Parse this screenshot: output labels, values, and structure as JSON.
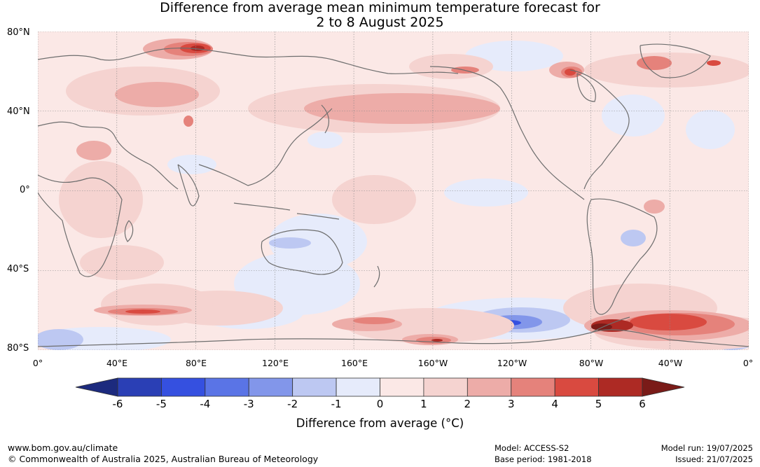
{
  "title": {
    "line1": "Difference from average mean minimum temperature forecast for",
    "line2": "2 to 8 August 2025"
  },
  "axes": {
    "lat_labels": [
      "80°N",
      "40°N",
      "0°",
      "40°S",
      "80°S"
    ],
    "lon_labels": [
      "0°",
      "40°E",
      "80°E",
      "120°E",
      "160°E",
      "160°W",
      "120°W",
      "80°W",
      "40°W",
      "0°"
    ]
  },
  "colorbar": {
    "ticks": [
      "-6",
      "-5",
      "-4",
      "-3",
      "-2",
      "-1",
      "0",
      "1",
      "2",
      "3",
      "4",
      "5",
      "6"
    ],
    "colors": [
      "#1c2a7e",
      "#2a3fb5",
      "#3550e0",
      "#5a74e6",
      "#8296ea",
      "#bdc8f2",
      "#e6ebfb",
      "#fbe8e6",
      "#f5d3d0",
      "#edaca8",
      "#e5827b",
      "#d94a40",
      "#ad2a24",
      "#7a1b18"
    ],
    "label": "Difference from average (°C)"
  },
  "footer": {
    "website": "www.bom.gov.au/climate",
    "copyright": "© Commonwealth of Australia 2025, Australian Bureau of Meteorology",
    "model": "Model: ACCESS-S2",
    "base_period": "Base period: 1981-2018",
    "model_run": "Model run: 19/07/2025",
    "issued": "Issued: 21/07/2025"
  }
}
